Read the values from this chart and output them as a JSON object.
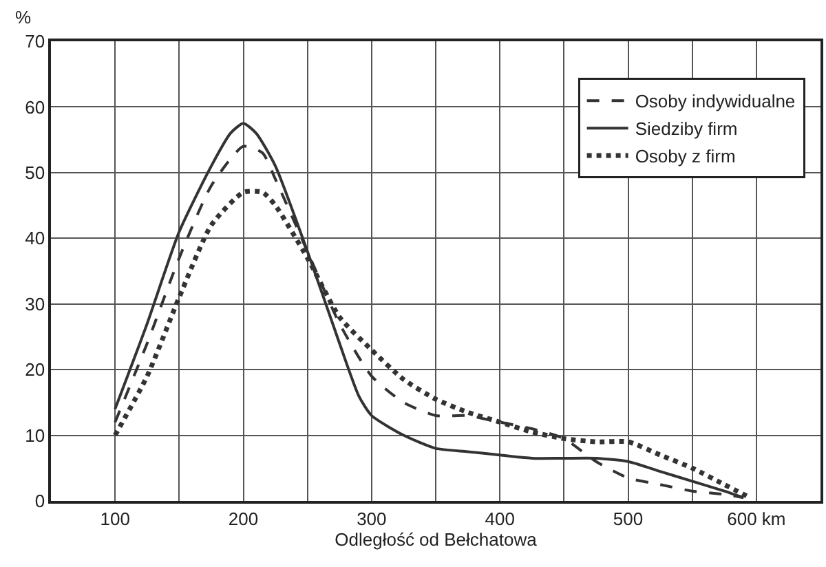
{
  "chart_data": {
    "type": "line",
    "xlabel": "Odległość od Bełchatowa",
    "ylabel": "%",
    "xlim": [
      50,
      650
    ],
    "ylim": [
      0,
      70
    ],
    "xticks": [
      100,
      {
        "value": 150,
        "label": null
      },
      200,
      {
        "value": 250,
        "label": null
      },
      300,
      {
        "value": 350,
        "label": null
      },
      400,
      {
        "value": 450,
        "label": null
      },
      500,
      {
        "value": 550,
        "label": null
      },
      {
        "value": 600,
        "label": "600 km"
      }
    ],
    "yticks": [
      0,
      10,
      20,
      30,
      40,
      50,
      60,
      70
    ],
    "grid": true,
    "legend": "top right",
    "marker": "none",
    "series": [
      {
        "name": "Osoby indywidualne",
        "color": "#333333",
        "line_style": "dashed",
        "x": [
          100,
          125,
          150,
          175,
          200,
          215,
          225,
          250,
          275,
          300,
          325,
          350,
          375,
          400,
          425,
          450,
          475,
          500,
          525,
          550,
          575,
          590
        ],
        "values": [
          12,
          24,
          37,
          48,
          54,
          53,
          49,
          38,
          27,
          19,
          15,
          13,
          13,
          12,
          11,
          9.5,
          6,
          3.5,
          2.5,
          1.5,
          1,
          0.5
        ]
      },
      {
        "name": "Siedziby firm",
        "color": "#333333",
        "line_style": "solid",
        "x": [
          100,
          125,
          150,
          175,
          190,
          200,
          210,
          225,
          250,
          275,
          290,
          300,
          325,
          350,
          375,
          400,
          425,
          450,
          475,
          500,
          525,
          550,
          575,
          590
        ],
        "values": [
          14,
          27,
          41,
          51,
          56,
          57.5,
          56,
          51,
          38,
          24,
          16,
          13,
          10,
          8,
          7.5,
          7,
          6.5,
          6.5,
          6.5,
          6,
          4.5,
          3,
          1.5,
          0.5
        ]
      },
      {
        "name": "Osoby z firm",
        "color": "#333333",
        "line_style": "dotted",
        "x": [
          100,
          125,
          150,
          175,
          200,
          215,
          225,
          250,
          275,
          300,
          325,
          350,
          375,
          400,
          425,
          450,
          475,
          500,
          525,
          550,
          575,
          595
        ],
        "values": [
          10,
          19,
          31,
          42,
          47,
          47,
          45,
          37,
          28,
          23,
          18.5,
          15.5,
          13.5,
          12,
          10.5,
          9.5,
          9,
          9,
          7,
          5,
          2.5,
          0.5
        ]
      }
    ]
  }
}
